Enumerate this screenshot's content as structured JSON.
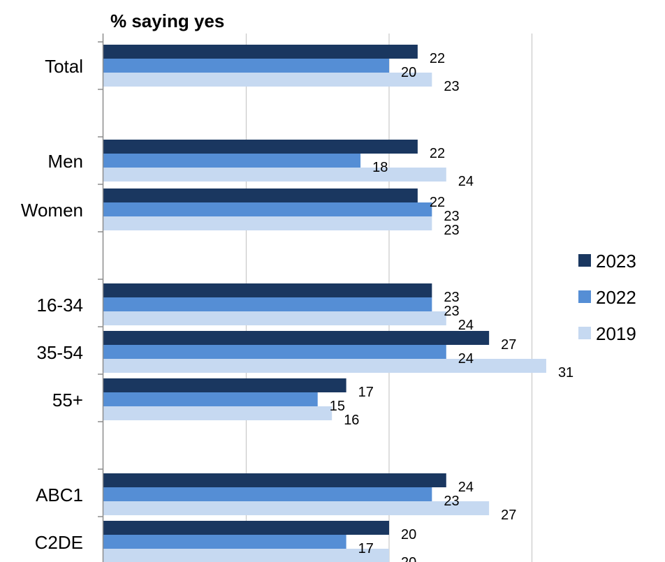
{
  "chart_data": {
    "type": "bar",
    "orientation": "horizontal",
    "title": "% saying yes",
    "xlim": [
      0,
      40
    ],
    "grid": true,
    "legend_position": "right",
    "categories": [
      "Total",
      "Men",
      "Women",
      "16-34",
      "35-54",
      "55+",
      "ABC1",
      "C2DE"
    ],
    "series": [
      {
        "name": "2023",
        "color": "#1a3760",
        "values": [
          22,
          22,
          22,
          23,
          27,
          17,
          24,
          20
        ]
      },
      {
        "name": "2022",
        "color": "#558ed5",
        "values": [
          20,
          18,
          23,
          23,
          24,
          15,
          23,
          17
        ]
      },
      {
        "name": "2019",
        "color": "#c6d9f1",
        "values": [
          23,
          24,
          23,
          24,
          31,
          16,
          27,
          20
        ]
      }
    ]
  }
}
